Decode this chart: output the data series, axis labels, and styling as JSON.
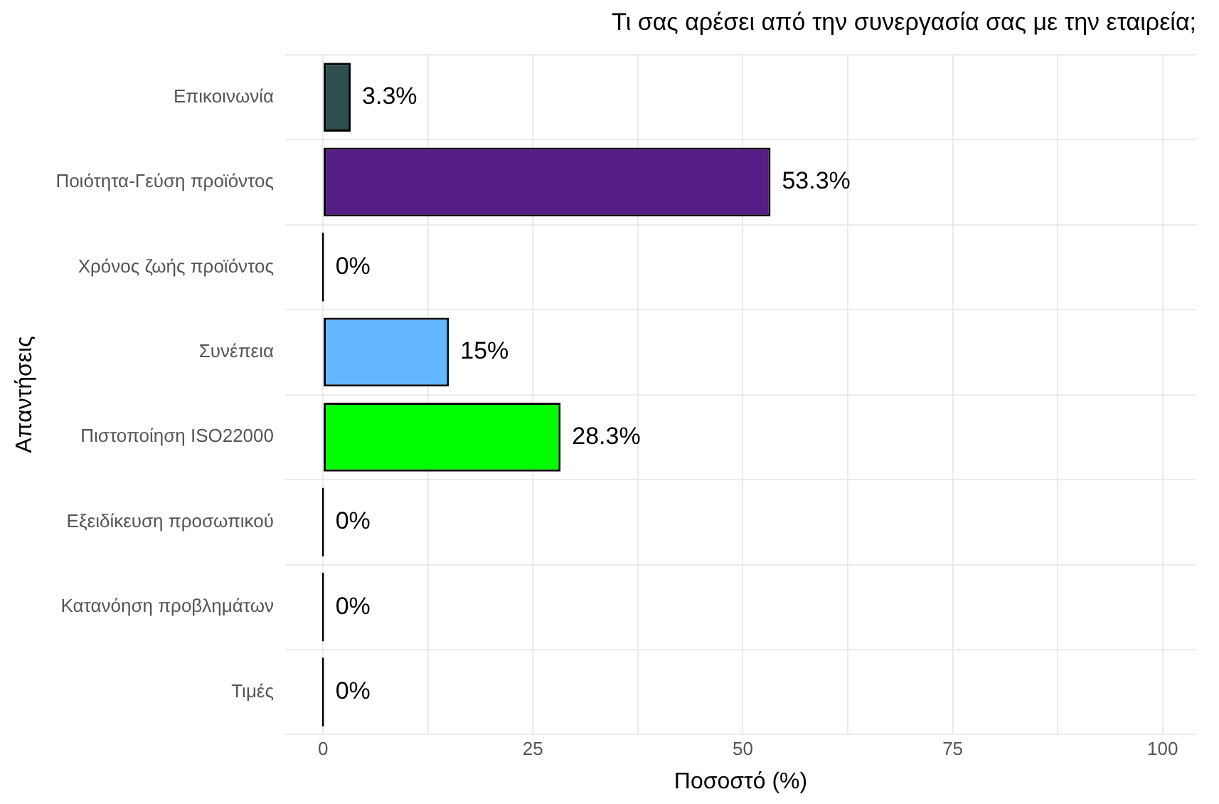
{
  "chart_data": {
    "type": "bar",
    "orientation": "horizontal",
    "title": "Τι σας αρέσει από την συνεργασία σας με την εταιρεία;",
    "xlabel": "Ποσοστό (%)",
    "ylabel": "Απαντήσεις",
    "categories": [
      "Επικοινωνία",
      "Ποιότητα-Γεύση προϊόντος",
      "Χρόνος ζωής προϊόντος",
      "Συνέπεια",
      "Πιστοποίηση ISO22000",
      "Εξειδίκευση προσωπικού",
      "Κατανόηση προβλημάτων",
      "Τιμές"
    ],
    "values": [
      3.3,
      53.3,
      0,
      15,
      28.3,
      0,
      0,
      0
    ],
    "colors": [
      "#2f4f4f",
      "#561d87",
      "#000000",
      "#63b8ff",
      "#00ff00",
      "#000000",
      "#000000",
      "#000000"
    ],
    "value_labels": [
      "3.3%",
      "53.3%",
      "0%",
      "15%",
      "28.3%",
      "0%",
      "0%",
      "0%"
    ],
    "xlim": [
      -4.5,
      104
    ],
    "xticks": [
      0,
      {
        "value": 12.5,
        "label": null
      },
      25,
      {
        "value": 37.5,
        "label": null
      },
      50,
      {
        "value": 62.5,
        "label": null
      },
      75,
      {
        "value": 87.5,
        "label": null
      },
      100
    ],
    "grid": true,
    "legend": false
  }
}
